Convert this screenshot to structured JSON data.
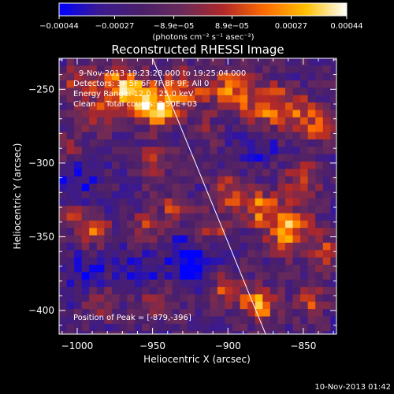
{
  "chart_data": {
    "type": "heatmap",
    "title": "Reconstructed RHESSI Image",
    "xlabel": "Heliocentric X (arcsec)",
    "ylabel": "Heliocentric Y (arcsec)",
    "xlim": [
      -1012,
      -828
    ],
    "ylim": [
      -416,
      -229
    ],
    "x_ticks": [
      -1000,
      -950,
      -900,
      -850
    ],
    "x_tick_labels": [
      "−1000",
      "−950",
      "−900",
      "−850"
    ],
    "y_ticks": [
      -250,
      -300,
      -350,
      -400
    ],
    "y_tick_labels": [
      "−250",
      "−300",
      "−350",
      "−400"
    ],
    "colorbar": {
      "min": -0.00044,
      "max": 0.00044,
      "ticks": [
        -0.00044,
        -0.00027,
        -8.9e-05,
        8.9e-05,
        0.00027,
        0.00044
      ],
      "tick_labels": [
        "−0.00044",
        "−0.00027",
        "−8.9e−05",
        "8.9e−05",
        "0.00027",
        "0.00044"
      ],
      "unit_label": "(photons cm⁻² s⁻¹ asec⁻²)",
      "colormap": [
        "#0000ff",
        "#3b1a8f",
        "#4a1f6a",
        "#6a2a5a",
        "#b02828",
        "#ff6a00",
        "#ffc000",
        "#ffffff"
      ]
    },
    "annotations": {
      "time_range": "9-Nov-2013 19:23:28.000 to 19:25:04.000",
      "detectors": "Detectors: 3F 5F 6F 7F 8F 9F; All 0",
      "energy_range": "Energy Range: 12.0 - 25.0 keV",
      "clean": "Clean    Total counts: 2.50E+03",
      "peak": "Position of Peak = [-879,-396]"
    },
    "limb_line": {
      "x": [
        -950,
        -875
      ],
      "y": [
        -229,
        -416
      ]
    },
    "blobs": [
      {
        "x": -960,
        "y": -255,
        "amp": 1.0,
        "sigma": 10
      },
      {
        "x": -945,
        "y": -265,
        "amp": 0.9,
        "sigma": 8
      },
      {
        "x": -930,
        "y": -250,
        "amp": 0.7,
        "sigma": 10
      },
      {
        "x": -975,
        "y": -245,
        "amp": 0.7,
        "sigma": 9
      },
      {
        "x": -985,
        "y": -265,
        "amp": 0.55,
        "sigma": 9
      },
      {
        "x": -900,
        "y": -250,
        "amp": 0.75,
        "sigma": 10
      },
      {
        "x": -875,
        "y": -260,
        "amp": 0.8,
        "sigma": 11
      },
      {
        "x": -855,
        "y": -265,
        "amp": 0.6,
        "sigma": 9
      },
      {
        "x": -840,
        "y": -275,
        "amp": 0.6,
        "sigma": 8
      },
      {
        "x": -1000,
        "y": -245,
        "amp": 0.55,
        "sigma": 8
      },
      {
        "x": -1005,
        "y": -290,
        "amp": 0.4,
        "sigma": 8
      },
      {
        "x": -950,
        "y": -300,
        "amp": 0.55,
        "sigma": 9
      },
      {
        "x": -935,
        "y": -330,
        "amp": 0.6,
        "sigma": 7
      },
      {
        "x": -955,
        "y": -345,
        "amp": 0.55,
        "sigma": 8
      },
      {
        "x": -990,
        "y": -345,
        "amp": 0.95,
        "sigma": 7
      },
      {
        "x": -1005,
        "y": -335,
        "amp": 0.6,
        "sigma": 6
      },
      {
        "x": -860,
        "y": -345,
        "amp": 1.0,
        "sigma": 11
      },
      {
        "x": -880,
        "y": -330,
        "amp": 0.75,
        "sigma": 9
      },
      {
        "x": -900,
        "y": -320,
        "amp": 0.65,
        "sigma": 8
      },
      {
        "x": -910,
        "y": -345,
        "amp": 0.55,
        "sigma": 8
      },
      {
        "x": -850,
        "y": -310,
        "amp": 0.6,
        "sigma": 9
      },
      {
        "x": -835,
        "y": -360,
        "amp": 0.55,
        "sigma": 8
      },
      {
        "x": -879,
        "y": -396,
        "amp": 1.0,
        "sigma": 8
      },
      {
        "x": -900,
        "y": -385,
        "amp": 0.65,
        "sigma": 8
      },
      {
        "x": -845,
        "y": -395,
        "amp": 0.6,
        "sigma": 8
      },
      {
        "x": -950,
        "y": -395,
        "amp": 0.5,
        "sigma": 9
      },
      {
        "x": -985,
        "y": -395,
        "amp": 0.45,
        "sigma": 8
      },
      {
        "x": -915,
        "y": -280,
        "amp": 0.4,
        "sigma": 7
      },
      {
        "x": -925,
        "y": -365,
        "amp": -0.6,
        "sigma": 9
      },
      {
        "x": -1000,
        "y": -310,
        "amp": -0.3,
        "sigma": 10
      },
      {
        "x": -960,
        "y": -375,
        "amp": -0.35,
        "sigma": 10
      },
      {
        "x": -880,
        "y": -290,
        "amp": -0.3,
        "sigma": 8
      },
      {
        "x": -995,
        "y": -375,
        "amp": -0.4,
        "sigma": 8
      }
    ]
  },
  "footer": {
    "date": "10-Nov-2013 01:42"
  }
}
